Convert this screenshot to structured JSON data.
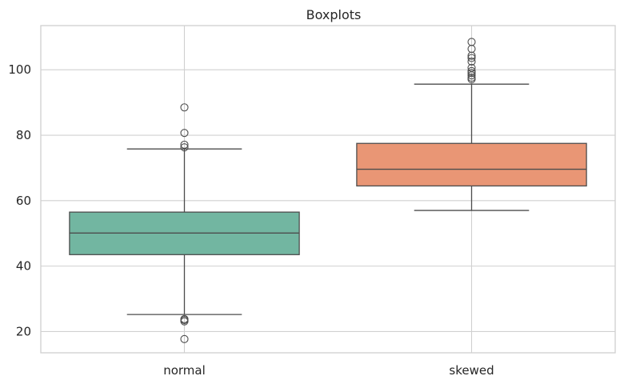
{
  "chart_data": {
    "type": "boxplot",
    "title": "Boxplots",
    "xlabel": "",
    "ylabel": "",
    "ylim": [
      13.5,
      113.5
    ],
    "yticks": [
      20,
      40,
      60,
      80,
      100
    ],
    "grid": true,
    "categories": [
      "normal",
      "skewed"
    ],
    "boxes": [
      {
        "name": "normal",
        "color": "#72b6a1",
        "whisker_low": 25.2,
        "q1": 43.5,
        "median": 50.1,
        "q3": 56.5,
        "whisker_high": 75.8,
        "outliers": [
          17.7,
          23.1,
          23.5,
          23.8,
          76.3,
          77.1,
          80.7,
          88.5
        ]
      },
      {
        "name": "skewed",
        "color": "#e99675",
        "whisker_low": 57.0,
        "q1": 64.5,
        "median": 69.6,
        "q3": 77.5,
        "whisker_high": 95.6,
        "outliers": [
          97.1,
          97.6,
          98.3,
          99.0,
          99.6,
          100.6,
          102.5,
          103.6,
          104.3,
          106.4,
          108.5
        ]
      }
    ]
  }
}
